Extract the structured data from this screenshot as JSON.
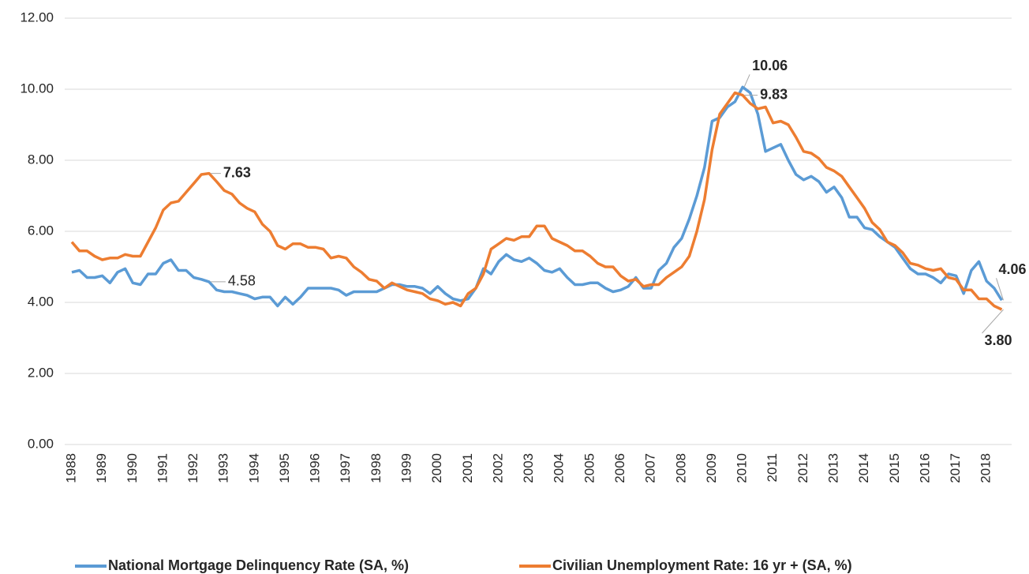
{
  "chart_data": {
    "type": "line",
    "categories": [
      "1988",
      null,
      null,
      null,
      "1989",
      null,
      null,
      null,
      "1990",
      null,
      null,
      null,
      "1991",
      null,
      null,
      null,
      "1992",
      null,
      null,
      null,
      "1993",
      null,
      null,
      null,
      "1994",
      null,
      null,
      null,
      "1995",
      null,
      null,
      null,
      "1996",
      null,
      null,
      null,
      "1997",
      null,
      null,
      null,
      "1998",
      null,
      null,
      null,
      "1999",
      null,
      null,
      null,
      "2000",
      null,
      null,
      null,
      "2001",
      null,
      null,
      null,
      "2002",
      null,
      null,
      null,
      "2003",
      null,
      null,
      null,
      "2004",
      null,
      null,
      null,
      "2005",
      null,
      null,
      null,
      "2006",
      null,
      null,
      null,
      "2007",
      null,
      null,
      null,
      "2008",
      null,
      null,
      null,
      "2009",
      null,
      null,
      null,
      "2010",
      null,
      null,
      null,
      "2011",
      null,
      null,
      null,
      "2012",
      null,
      null,
      null,
      "2013",
      null,
      null,
      null,
      "2014",
      null,
      null,
      null,
      "2015",
      null,
      null,
      null,
      "2016",
      null,
      null,
      null,
      "2017",
      null,
      null,
      null,
      "2018",
      null,
      null
    ],
    "series": [
      {
        "name": "National Mortgage Delinquency Rate (SA, %)",
        "color": "#5b9bd5",
        "values": [
          4.85,
          4.9,
          4.7,
          4.7,
          4.75,
          4.55,
          4.85,
          4.95,
          4.55,
          4.5,
          4.8,
          4.8,
          5.1,
          5.2,
          4.9,
          4.9,
          4.7,
          4.65,
          4.58,
          4.35,
          4.3,
          4.3,
          4.25,
          4.2,
          4.1,
          4.15,
          4.15,
          3.9,
          4.15,
          3.95,
          4.15,
          4.4,
          4.4,
          4.4,
          4.4,
          4.35,
          4.2,
          4.3,
          4.3,
          4.3,
          4.3,
          4.4,
          4.5,
          4.5,
          4.45,
          4.45,
          4.4,
          4.25,
          4.45,
          4.25,
          4.1,
          4.05,
          4.1,
          4.4,
          4.95,
          4.8,
          5.15,
          5.35,
          5.2,
          5.15,
          5.25,
          5.1,
          4.9,
          4.85,
          4.95,
          4.7,
          4.5,
          4.5,
          4.55,
          4.55,
          4.4,
          4.3,
          4.35,
          4.45,
          4.7,
          4.4,
          4.4,
          4.9,
          5.1,
          5.55,
          5.8,
          6.35,
          7.0,
          7.8,
          9.1,
          9.2,
          9.5,
          9.65,
          10.06,
          9.9,
          9.3,
          8.25,
          8.35,
          8.45,
          8.0,
          7.6,
          7.45,
          7.55,
          7.4,
          7.1,
          7.25,
          6.95,
          6.4,
          6.4,
          6.1,
          6.05,
          5.85,
          5.7,
          5.55,
          5.25,
          4.95,
          4.8,
          4.8,
          4.7,
          4.55,
          4.8,
          4.75,
          4.25,
          4.9,
          5.15,
          4.6,
          4.4,
          4.06
        ],
        "value_labels": [
          null,
          null,
          null,
          null,
          null,
          null,
          null,
          null,
          null,
          null,
          null,
          null,
          null,
          null,
          null,
          null,
          null,
          null,
          "4.58",
          null,
          null,
          null,
          null,
          null,
          null,
          null,
          null,
          null,
          null,
          null,
          null,
          null,
          null,
          null,
          null,
          null,
          null,
          null,
          null,
          null,
          null,
          null,
          null,
          null,
          null,
          null,
          null,
          null,
          null,
          null,
          null,
          null,
          null,
          null,
          null,
          null,
          null,
          null,
          null,
          null,
          null,
          null,
          null,
          null,
          null,
          null,
          null,
          null,
          null,
          null,
          null,
          null,
          null,
          null,
          null,
          null,
          null,
          null,
          null,
          null,
          null,
          null,
          null,
          null,
          null,
          null,
          null,
          null,
          "10.06",
          null,
          null,
          null,
          null,
          null,
          null,
          null,
          null,
          null,
          null,
          null,
          null,
          null,
          null,
          null,
          null,
          null,
          null,
          null,
          null,
          null,
          null,
          null,
          null,
          null,
          null,
          null,
          null,
          null,
          null,
          null,
          null,
          null,
          "4.06"
        ]
      },
      {
        "name": "Civilian Unemployment Rate: 16 yr + (SA, %)",
        "color": "#ed7d31",
        "values": [
          5.7,
          5.45,
          5.45,
          5.3,
          5.2,
          5.25,
          5.25,
          5.35,
          5.3,
          5.3,
          5.7,
          6.1,
          6.6,
          6.8,
          6.85,
          7.1,
          7.35,
          7.6,
          7.63,
          7.4,
          7.15,
          7.05,
          6.8,
          6.65,
          6.55,
          6.2,
          6.0,
          5.6,
          5.5,
          5.65,
          5.65,
          5.55,
          5.55,
          5.5,
          5.25,
          5.3,
          5.25,
          5.0,
          4.85,
          4.65,
          4.6,
          4.4,
          4.55,
          4.45,
          4.35,
          4.3,
          4.25,
          4.1,
          4.05,
          3.95,
          4.0,
          3.9,
          4.25,
          4.4,
          4.8,
          5.5,
          5.65,
          5.8,
          5.75,
          5.85,
          5.85,
          6.15,
          6.15,
          5.8,
          5.7,
          5.6,
          5.45,
          5.45,
          5.3,
          5.1,
          5.0,
          5.0,
          4.75,
          4.6,
          4.65,
          4.45,
          4.5,
          4.5,
          4.7,
          4.85,
          5.0,
          5.3,
          6.0,
          6.9,
          8.3,
          9.3,
          9.6,
          9.9,
          9.83,
          9.6,
          9.45,
          9.5,
          9.05,
          9.1,
          9.0,
          8.65,
          8.25,
          8.2,
          8.05,
          7.8,
          7.7,
          7.55,
          7.25,
          6.95,
          6.65,
          6.25,
          6.05,
          5.7,
          5.6,
          5.4,
          5.1,
          5.05,
          4.95,
          4.9,
          4.95,
          4.7,
          4.65,
          4.35,
          4.35,
          4.1,
          4.1,
          3.9,
          3.8
        ],
        "value_labels": [
          null,
          null,
          null,
          null,
          null,
          null,
          null,
          null,
          null,
          null,
          null,
          null,
          null,
          null,
          null,
          null,
          null,
          null,
          "7.63",
          null,
          null,
          null,
          null,
          null,
          null,
          null,
          null,
          null,
          null,
          null,
          null,
          null,
          null,
          null,
          null,
          null,
          null,
          null,
          null,
          null,
          null,
          null,
          null,
          null,
          null,
          null,
          null,
          null,
          null,
          null,
          null,
          null,
          null,
          null,
          null,
          null,
          null,
          null,
          null,
          null,
          null,
          null,
          null,
          null,
          null,
          null,
          null,
          null,
          null,
          null,
          null,
          null,
          null,
          null,
          null,
          null,
          null,
          null,
          null,
          null,
          null,
          null,
          null,
          null,
          null,
          null,
          null,
          null,
          "9.83",
          null,
          null,
          null,
          null,
          null,
          null,
          null,
          null,
          null,
          null,
          null,
          null,
          null,
          null,
          null,
          null,
          null,
          null,
          null,
          null,
          null,
          null,
          null,
          null,
          null,
          null,
          null,
          null,
          null,
          null,
          null,
          null,
          null,
          "3.80"
        ]
      }
    ],
    "ylim": [
      0,
      12
    ],
    "yticks": [
      {
        "value": 0,
        "label": "0.00"
      },
      {
        "value": 2,
        "label": "2.00"
      },
      {
        "value": 4,
        "label": "4.00"
      },
      {
        "value": 6,
        "label": "6.00"
      },
      {
        "value": 8,
        "label": "8.00"
      },
      {
        "value": 10,
        "label": "10.00"
      },
      {
        "value": 12,
        "label": "12.00"
      }
    ],
    "grid": true,
    "legend": "bottom"
  }
}
